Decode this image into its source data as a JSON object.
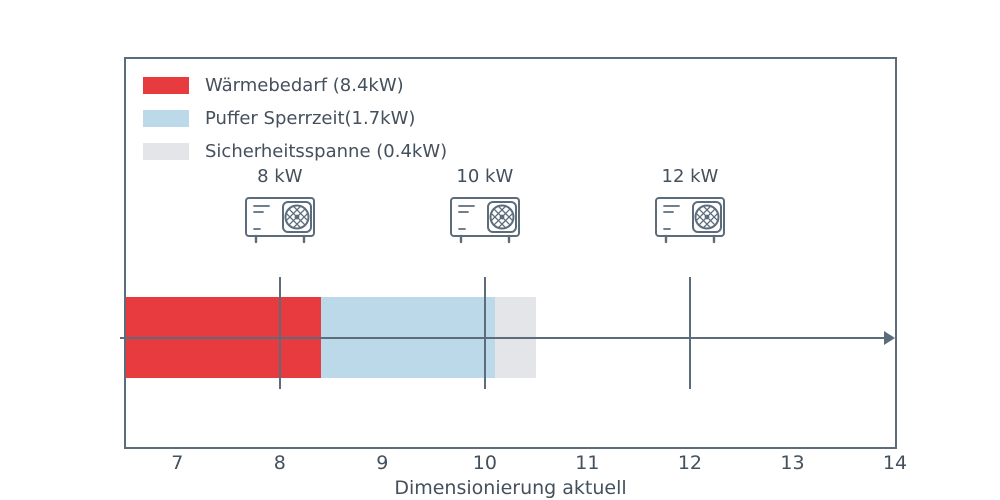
{
  "chart_data": {
    "type": "bar",
    "subtype": "horizontal-stacked",
    "title": "",
    "xlabel": "Dimensionierung aktuell",
    "ylabel": "",
    "xlim": [
      6.5,
      14
    ],
    "x_ticks": [
      7,
      8,
      9,
      10,
      11,
      12,
      13,
      14
    ],
    "grid": false,
    "legend_position": "upper-left",
    "bar": {
      "start": 6.5,
      "segments": [
        {
          "name": "waermebedarf",
          "label": "Wärmebedarf (8.4kW)",
          "value_kw": 8.4,
          "x_end": 8.4,
          "color": "#e83b3f"
        },
        {
          "name": "puffer-sperrzeit",
          "label": "Puffer Sperrzeit(1.7kW)",
          "value_kw": 1.7,
          "x_end": 10.1,
          "color": "#bcd9e9"
        },
        {
          "name": "sicherheitsspanne",
          "label": "Sicherheitsspanne (0.4kW)",
          "value_kw": 0.4,
          "x_end": 10.5,
          "color": "#e3e5e9"
        }
      ]
    },
    "markers": [
      {
        "x": 8,
        "label": "8 kW",
        "icon": "heat-pump-icon"
      },
      {
        "x": 10,
        "label": "10 kW",
        "icon": "heat-pump-icon"
      },
      {
        "x": 12,
        "label": "12 kW",
        "icon": "heat-pump-icon"
      }
    ],
    "colors": {
      "axis": "#5d6c7b",
      "text": "#44505c",
      "background": "#ffffff"
    }
  }
}
